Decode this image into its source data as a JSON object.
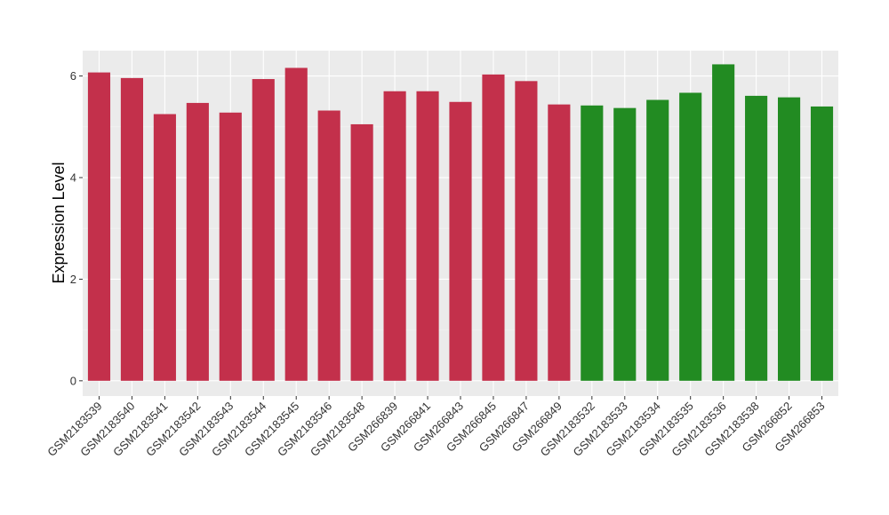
{
  "chart_data": {
    "type": "bar",
    "ylabel": "Expression Level",
    "xlabel": "",
    "ylim": [
      -0.3,
      6.5
    ],
    "yticks": [
      0,
      2,
      4,
      6
    ],
    "grid": true,
    "categories": [
      "GSM2183539",
      "GSM2183540",
      "GSM2183541",
      "GSM2183542",
      "GSM2183543",
      "GSM2183544",
      "GSM2183545",
      "GSM2183546",
      "GSM2183548",
      "GSM266839",
      "GSM266841",
      "GSM266843",
      "GSM266845",
      "GSM266847",
      "GSM266849",
      "GSM2183532",
      "GSM2183533",
      "GSM2183534",
      "GSM2183535",
      "GSM2183536",
      "GSM2183538",
      "GSM266852",
      "GSM266853"
    ],
    "values": [
      6.07,
      5.96,
      5.25,
      5.47,
      5.28,
      5.94,
      6.16,
      5.32,
      5.05,
      5.7,
      5.7,
      5.49,
      6.03,
      5.9,
      5.44,
      5.42,
      5.37,
      5.53,
      5.67,
      6.23,
      5.61,
      5.58,
      5.4
    ],
    "colors": [
      "#c3304b",
      "#c3304b",
      "#c3304b",
      "#c3304b",
      "#c3304b",
      "#c3304b",
      "#c3304b",
      "#c3304b",
      "#c3304b",
      "#c3304b",
      "#c3304b",
      "#c3304b",
      "#c3304b",
      "#c3304b",
      "#c3304b",
      "#228b22",
      "#228b22",
      "#228b22",
      "#228b22",
      "#228b22",
      "#228b22",
      "#228b22",
      "#228b22"
    ]
  }
}
